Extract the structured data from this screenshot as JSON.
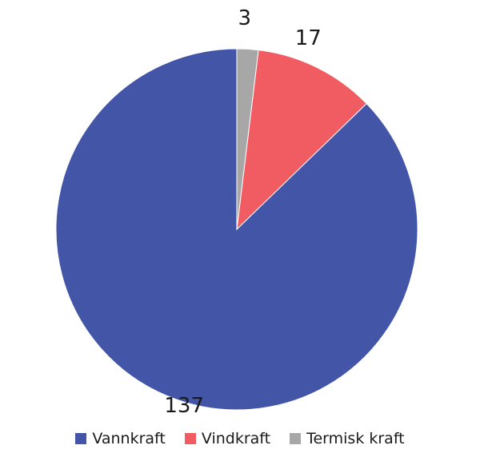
{
  "chart_data": {
    "type": "pie",
    "title": "",
    "start": "top",
    "direction": "counterclockwise",
    "legend_position": "bottom",
    "labels": [
      "Vannkraft",
      "Vindkraft",
      "Termisk kraft"
    ],
    "values": [
      137,
      17,
      3
    ],
    "data_labels": [
      "137",
      "17",
      "3"
    ],
    "colors": [
      "#4355a7",
      "#f15b62",
      "#a7a7a8"
    ]
  }
}
